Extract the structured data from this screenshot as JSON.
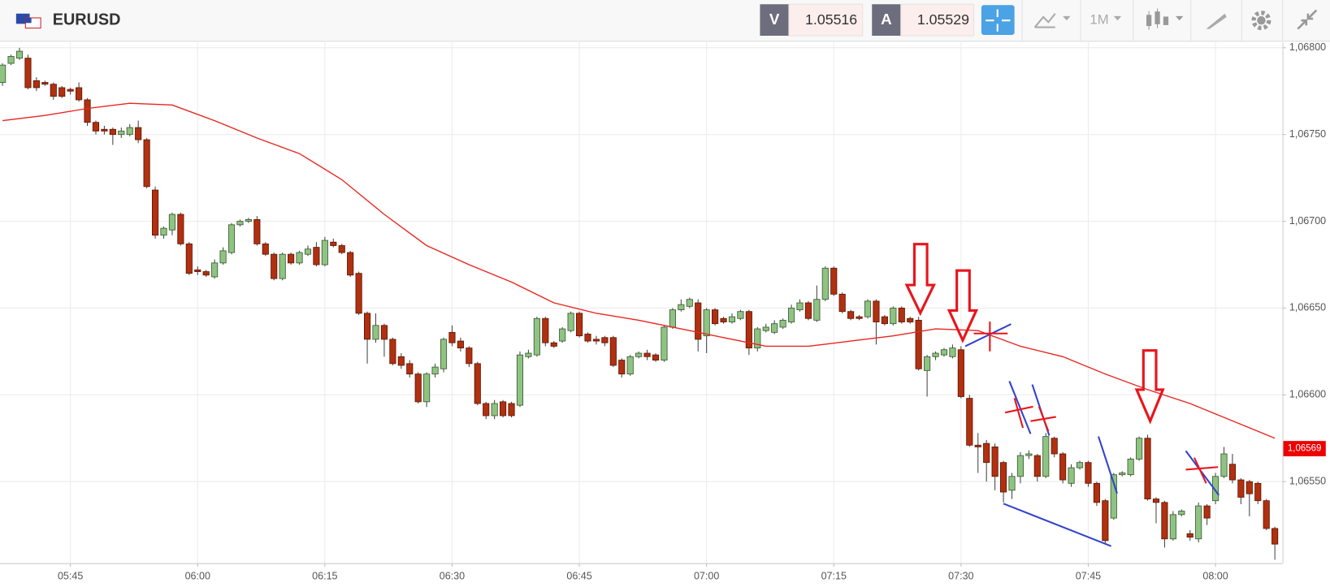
{
  "toolbar": {
    "bid_label": "V",
    "bid": 1.05516,
    "ask_label": "A",
    "ask": 1.05529,
    "timeframe": "1M"
  },
  "chart_data": {
    "type": "candlestick",
    "title": "EURUSD",
    "up_color": "#8fc382",
    "down_color": "#b0300f",
    "xlim": [
      336.7,
      487.9
    ],
    "ylim": [
      1.06503,
      1.06803
    ],
    "grid": true,
    "xticks": [
      {
        "value": 345,
        "label": "05:45"
      },
      {
        "value": 360,
        "label": "06:00"
      },
      {
        "value": 375,
        "label": "06:15"
      },
      {
        "value": 390,
        "label": "06:30"
      },
      {
        "value": 405,
        "label": "06:45"
      },
      {
        "value": 420,
        "label": "07:00"
      },
      {
        "value": 435,
        "label": "07:15"
      },
      {
        "value": 450,
        "label": "07:30"
      },
      {
        "value": 465,
        "label": "07:45"
      },
      {
        "value": 480,
        "label": "08:00"
      }
    ],
    "yticks": [
      {
        "value": 1.068,
        "label": "1,06800"
      },
      {
        "value": 1.0675,
        "label": "1,06750"
      },
      {
        "value": 1.067,
        "label": "1,06700"
      },
      {
        "value": 1.0665,
        "label": "1,06650"
      },
      {
        "value": 1.066,
        "label": "1,06600"
      },
      {
        "value": 1.0655,
        "label": "1,06550"
      }
    ],
    "price": {
      "value": 1.06569,
      "label": "1,06569",
      "color": "#ee0000"
    },
    "x": [
      337,
      338,
      339,
      340,
      341,
      342,
      343,
      344,
      345,
      346,
      347,
      348,
      349,
      350,
      351,
      352,
      353,
      354,
      355,
      356,
      357,
      358,
      359,
      360,
      361,
      362,
      363,
      364,
      365,
      366,
      367,
      368,
      369,
      370,
      371,
      372,
      373,
      374,
      375,
      376,
      377,
      378,
      379,
      380,
      381,
      382,
      383,
      384,
      385,
      386,
      387,
      388,
      389,
      390,
      391,
      392,
      393,
      394,
      395,
      396,
      397,
      398,
      399,
      400,
      401,
      402,
      403,
      404,
      405,
      406,
      407,
      408,
      409,
      410,
      411,
      412,
      413,
      414,
      415,
      416,
      417,
      418,
      419,
      420,
      421,
      422,
      423,
      424,
      425,
      426,
      427,
      428,
      429,
      430,
      431,
      432,
      433,
      434,
      435,
      436,
      437,
      438,
      439,
      440,
      441,
      442,
      443,
      444,
      445,
      446,
      447,
      448,
      449,
      450,
      451,
      452,
      453,
      454,
      455,
      456,
      457,
      458,
      459,
      460,
      461,
      462,
      463,
      464,
      465,
      466,
      467,
      468,
      469,
      470,
      471,
      472,
      473,
      474,
      475,
      476,
      477,
      478,
      479,
      480,
      481,
      482,
      483,
      484,
      485,
      486,
      487
    ],
    "open": [
      1.0678,
      1.06791,
      1.06794,
      1.06794,
      1.06781,
      1.0678,
      1.06779,
      1.06777,
      1.06776,
      1.06777,
      1.0677,
      1.06757,
      1.06753,
      1.06753,
      1.0675,
      1.0675,
      1.06754,
      1.06747,
      1.06718,
      1.06692,
      1.06695,
      1.06704,
      1.06687,
      1.06672,
      1.06671,
      1.06668,
      1.06676,
      1.06682,
      1.06698,
      1.067,
      1.06701,
      1.06687,
      1.06681,
      1.06667,
      1.06681,
      1.06676,
      1.06681,
      1.06685,
      1.06675,
      1.06688,
      1.06686,
      1.06682,
      1.0667,
      1.06647,
      1.06632,
      1.0664,
      1.06632,
      1.06622,
      1.06618,
      1.06612,
      1.06596,
      1.06612,
      1.06615,
      1.06636,
      1.06631,
      1.06627,
      1.06618,
      1.06595,
      1.06588,
      1.06596,
      1.06595,
      1.06594,
      1.06622,
      1.06623,
      1.06644,
      1.0663,
      1.06631,
      1.06637,
      1.06647,
      1.06635,
      1.06632,
      1.06633,
      1.06633,
      1.0662,
      1.06612,
      1.06622,
      1.06624,
      1.06623,
      1.0662,
      1.06639,
      1.06649,
      1.06651,
      1.06653,
      1.06634,
      1.06649,
      1.06644,
      1.06642,
      1.06644,
      1.06648,
      1.06627,
      1.06637,
      1.06636,
      1.06639,
      1.06642,
      1.06649,
      1.06653,
      1.06643,
      1.06655,
      1.06673,
      1.06658,
      1.06648,
      1.06645,
      1.06645,
      1.06654,
      1.06645,
      1.06641,
      1.0665,
      1.06644,
      1.06643,
      1.06614,
      1.06622,
      1.06623,
      1.06622,
      1.06626,
      1.06598,
      1.06571,
      1.06572,
      1.0657,
      1.06561,
      1.06545,
      1.06553,
      1.06565,
      1.06565,
      1.06553,
      1.06575,
      1.06566,
      1.06549,
      1.06558,
      1.06561,
      1.06549,
      1.06539,
      1.06529,
      1.06554,
      1.06554,
      1.06563,
      1.06575,
      1.0654,
      1.06538,
      1.06517,
      1.06531,
      1.0652,
      1.06517,
      1.06536,
      1.06539,
      1.06553,
      1.0656,
      1.06551,
      1.0655,
      1.06549,
      1.06539,
      1.06523
    ],
    "high": [
      1.06791,
      1.06796,
      1.068,
      1.06796,
      1.06783,
      1.06781,
      1.0678,
      1.06778,
      1.06777,
      1.0678,
      1.06771,
      1.06758,
      1.06755,
      1.06754,
      1.06754,
      1.06756,
      1.06758,
      1.06748,
      1.0672,
      1.06697,
      1.06705,
      1.06705,
      1.06688,
      1.06674,
      1.06672,
      1.06678,
      1.06685,
      1.06699,
      1.06701,
      1.06702,
      1.06703,
      1.06688,
      1.06682,
      1.06682,
      1.06682,
      1.06683,
      1.06686,
      1.06688,
      1.06691,
      1.0669,
      1.06687,
      1.06683,
      1.06671,
      1.06648,
      1.06647,
      1.06641,
      1.06633,
      1.06624,
      1.0662,
      1.06613,
      1.06613,
      1.06618,
      1.06633,
      1.0664,
      1.06633,
      1.06628,
      1.06619,
      1.06596,
      1.06597,
      1.06597,
      1.06596,
      1.06625,
      1.06626,
      1.06645,
      1.06645,
      1.06631,
      1.06639,
      1.06648,
      1.06648,
      1.06636,
      1.06634,
      1.06634,
      1.06634,
      1.06621,
      1.06623,
      1.06625,
      1.06626,
      1.06624,
      1.0664,
      1.0665,
      1.06655,
      1.06656,
      1.06655,
      1.0665,
      1.0665,
      1.06645,
      1.06647,
      1.06649,
      1.06649,
      1.06639,
      1.06641,
      1.06643,
      1.06644,
      1.06652,
      1.06655,
      1.06654,
      1.06663,
      1.06674,
      1.06674,
      1.06659,
      1.06649,
      1.06646,
      1.06655,
      1.06655,
      1.06646,
      1.06651,
      1.06651,
      1.06645,
      1.06645,
      1.06623,
      1.06625,
      1.06627,
      1.06629,
      1.06628,
      1.066,
      1.06578,
      1.06574,
      1.06572,
      1.06562,
      1.06555,
      1.06567,
      1.06568,
      1.06566,
      1.06578,
      1.06576,
      1.06567,
      1.0656,
      1.06562,
      1.06562,
      1.0655,
      1.0654,
      1.06555,
      1.06556,
      1.06564,
      1.06576,
      1.06577,
      1.06541,
      1.06539,
      1.06533,
      1.06534,
      1.06522,
      1.06538,
      1.06537,
      1.06555,
      1.0657,
      1.06566,
      1.06552,
      1.06551,
      1.0655,
      1.0654,
      1.06524
    ],
    "low": [
      1.06778,
      1.0679,
      1.06793,
      1.06776,
      1.06775,
      1.06778,
      1.0677,
      1.06771,
      1.06773,
      1.06769,
      1.06755,
      1.0675,
      1.0675,
      1.06744,
      1.06748,
      1.06749,
      1.06745,
      1.06719,
      1.0669,
      1.0669,
      1.06692,
      1.06686,
      1.06669,
      1.06669,
      1.06668,
      1.06667,
      1.06675,
      1.06681,
      1.06697,
      1.06699,
      1.06686,
      1.0668,
      1.06666,
      1.06666,
      1.06675,
      1.06675,
      1.0668,
      1.06674,
      1.06674,
      1.06685,
      1.06681,
      1.06668,
      1.06646,
      1.06618,
      1.0663,
      1.06622,
      1.06617,
      1.06615,
      1.0661,
      1.06595,
      1.06593,
      1.0661,
      1.06613,
      1.06628,
      1.06625,
      1.06616,
      1.06594,
      1.06586,
      1.06586,
      1.06587,
      1.06587,
      1.06593,
      1.06621,
      1.06622,
      1.06628,
      1.06627,
      1.0663,
      1.06636,
      1.06633,
      1.0663,
      1.06629,
      1.06628,
      1.06616,
      1.0661,
      1.06611,
      1.06621,
      1.0662,
      1.06619,
      1.06619,
      1.06638,
      1.06648,
      1.0665,
      1.06625,
      1.06624,
      1.0664,
      1.06641,
      1.06641,
      1.06643,
      1.06623,
      1.06625,
      1.06636,
      1.06635,
      1.06638,
      1.06641,
      1.06648,
      1.06643,
      1.06642,
      1.06654,
      1.06657,
      1.06647,
      1.06643,
      1.06643,
      1.06644,
      1.06629,
      1.0664,
      1.0664,
      1.06641,
      1.06641,
      1.06614,
      1.06599,
      1.0662,
      1.06622,
      1.06621,
      1.06598,
      1.0657,
      1.06555,
      1.0655,
      1.06545,
      1.06538,
      1.0654,
      1.06549,
      1.06563,
      1.0655,
      1.06552,
      1.06564,
      1.06549,
      1.06547,
      1.06557,
      1.06547,
      1.06536,
      1.06514,
      1.06528,
      1.06553,
      1.06553,
      1.06562,
      1.06539,
      1.06526,
      1.06512,
      1.06516,
      1.0653,
      1.06516,
      1.06515,
      1.06525,
      1.06537,
      1.06552,
      1.06549,
      1.06537,
      1.0653,
      1.06537,
      1.06522,
      1.06505
    ],
    "close": [
      1.0679,
      1.06795,
      1.06798,
      1.06777,
      1.06777,
      1.06779,
      1.06772,
      1.06772,
      1.06775,
      1.0677,
      1.06757,
      1.06752,
      1.06752,
      1.0675,
      1.06752,
      1.06754,
      1.06747,
      1.0672,
      1.06692,
      1.06696,
      1.06704,
      1.06687,
      1.0667,
      1.06671,
      1.06669,
      1.06676,
      1.06683,
      1.06698,
      1.067,
      1.06701,
      1.06687,
      1.06681,
      1.06667,
      1.06681,
      1.06676,
      1.06682,
      1.06684,
      1.06675,
      1.06689,
      1.06686,
      1.06682,
      1.06669,
      1.06647,
      1.06632,
      1.0664,
      1.06632,
      1.06618,
      1.06617,
      1.06612,
      1.06596,
      1.06612,
      1.06616,
      1.06632,
      1.0663,
      1.06627,
      1.06618,
      1.06595,
      1.06588,
      1.06595,
      1.06588,
      1.06588,
      1.06623,
      1.06624,
      1.06644,
      1.0663,
      1.06628,
      1.06638,
      1.06647,
      1.06634,
      1.06631,
      1.06631,
      1.0663,
      1.06617,
      1.06612,
      1.06622,
      1.06624,
      1.06622,
      1.0662,
      1.06639,
      1.06649,
      1.06652,
      1.06655,
      1.06632,
      1.06649,
      1.06641,
      1.06642,
      1.06645,
      1.06648,
      1.06627,
      1.06638,
      1.06639,
      1.06641,
      1.06643,
      1.0665,
      1.06653,
      1.06644,
      1.06655,
      1.06673,
      1.06658,
      1.06648,
      1.06644,
      1.06644,
      1.06654,
      1.06642,
      1.06641,
      1.0665,
      1.06642,
      1.06642,
      1.06615,
      1.06622,
      1.06624,
      1.06626,
      1.06627,
      1.06599,
      1.06571,
      1.0657,
      1.06561,
      1.06553,
      1.06544,
      1.06553,
      1.06565,
      1.06566,
      1.06553,
      1.06576,
      1.06566,
      1.06551,
      1.06558,
      1.06561,
      1.06549,
      1.06538,
      1.06516,
      1.06554,
      1.06555,
      1.06563,
      1.06575,
      1.0654,
      1.06538,
      1.06517,
      1.06531,
      1.06533,
      1.06518,
      1.06536,
      1.06529,
      1.06553,
      1.06566,
      1.06551,
      1.06541,
      1.06543,
      1.06539,
      1.06523,
      1.06514
    ],
    "line": {
      "color": "#e8251f",
      "x": [
        337,
        342,
        347,
        352,
        357,
        362,
        367,
        372,
        377,
        382,
        387,
        392,
        397,
        402,
        407,
        412,
        417,
        422,
        427,
        432,
        437,
        442,
        447,
        452,
        457,
        462,
        467,
        472,
        477,
        482,
        487
      ],
      "values": [
        1.06758,
        1.06761,
        1.06765,
        1.06768,
        1.06767,
        1.06758,
        1.06748,
        1.06739,
        1.06724,
        1.06704,
        1.06686,
        1.06675,
        1.06665,
        1.06653,
        1.06647,
        1.06643,
        1.06638,
        1.06633,
        1.06628,
        1.06628,
        1.06631,
        1.06634,
        1.06638,
        1.06637,
        1.06628,
        1.06622,
        1.06612,
        1.06603,
        1.06595,
        1.06585,
        1.06575
      ]
    }
  }
}
